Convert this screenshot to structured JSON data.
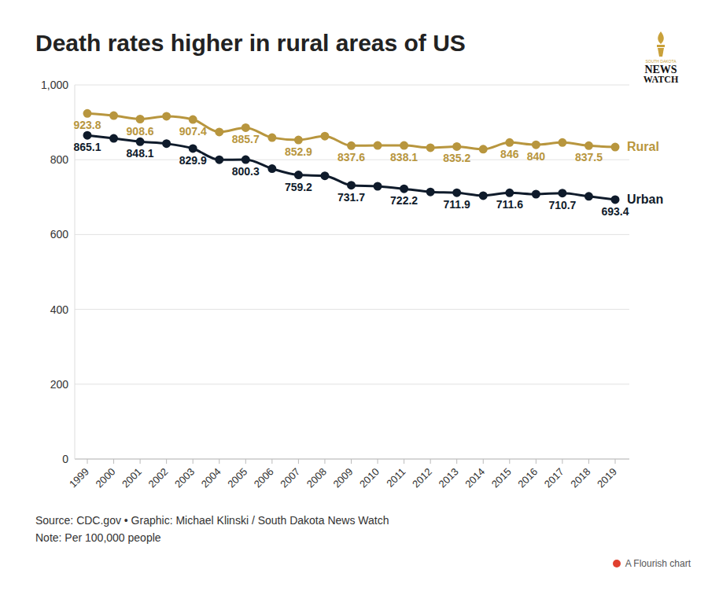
{
  "chart_data": {
    "type": "line",
    "title": "Death rates higher in rural areas of US",
    "categories": [
      "1999",
      "2000",
      "2001",
      "2002",
      "2003",
      "2004",
      "2005",
      "2006",
      "2007",
      "2008",
      "2009",
      "2010",
      "2011",
      "2012",
      "2013",
      "2014",
      "2015",
      "2016",
      "2017",
      "2018",
      "2019"
    ],
    "series": [
      {
        "name": "Rural",
        "color": "#b8963e",
        "values": [
          923.8,
          918,
          908.6,
          916,
          907.4,
          874,
          885.7,
          859,
          852.9,
          863,
          837.6,
          838,
          838.1,
          832,
          835.2,
          828,
          846,
          840,
          846,
          837.5,
          834
        ],
        "value_labels": [
          "923.8",
          null,
          "908.6",
          null,
          "907.4",
          null,
          "885.7",
          null,
          "852.9",
          null,
          "837.6",
          null,
          "838.1",
          null,
          "835.2",
          null,
          "846",
          "840",
          null,
          "837.5",
          null
        ]
      },
      {
        "name": "Urban",
        "color": "#0f1b2b",
        "values": [
          865.1,
          857,
          848.1,
          843,
          829.9,
          800,
          800.3,
          776,
          759.2,
          757,
          731.7,
          729,
          722.2,
          714,
          711.9,
          704,
          711.6,
          708,
          710.7,
          702,
          693.4
        ],
        "value_labels": [
          "865.1",
          null,
          "848.1",
          null,
          "829.9",
          null,
          "800.3",
          null,
          "759.2",
          null,
          "731.7",
          null,
          "722.2",
          null,
          "711.9",
          null,
          "711.6",
          null,
          "710.7",
          null,
          "693.4"
        ]
      }
    ],
    "ylim": [
      0,
      1000
    ],
    "yticks": [
      0,
      200,
      400,
      600,
      800,
      {
        "value": 1000,
        "label": "1,000"
      }
    ],
    "grid": true,
    "data_labels": true,
    "marker": "circle",
    "line_style": "solid",
    "source": "Source: CDC.gov • Graphic: Michael Klinski / South Dakota News Watch",
    "note": "Note: Per 100,000 people",
    "logo": [
      "SOUTH DAKOTA",
      "NEWS",
      "WATCH"
    ],
    "credit": "A Flourish chart"
  }
}
